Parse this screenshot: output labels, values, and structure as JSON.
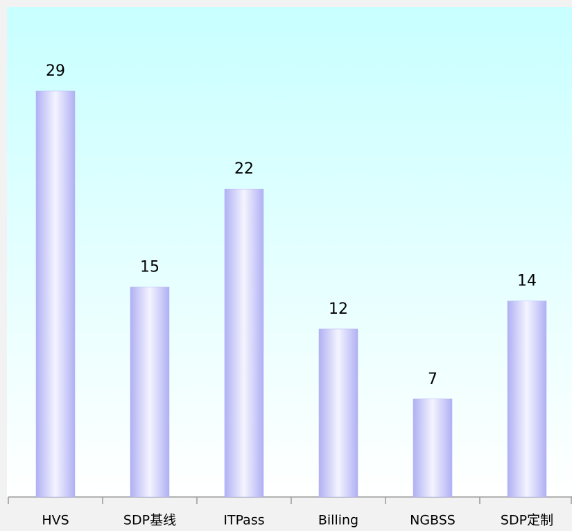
{
  "chart_data": {
    "type": "bar",
    "categories": [
      "HVS",
      "SDP基线",
      "ITPass",
      "Billing",
      "NGBSS",
      "SDP定制"
    ],
    "values": [
      29,
      15,
      22,
      12,
      7,
      14
    ],
    "color": "#b0b0f4",
    "ylim": [
      0,
      35
    ]
  }
}
